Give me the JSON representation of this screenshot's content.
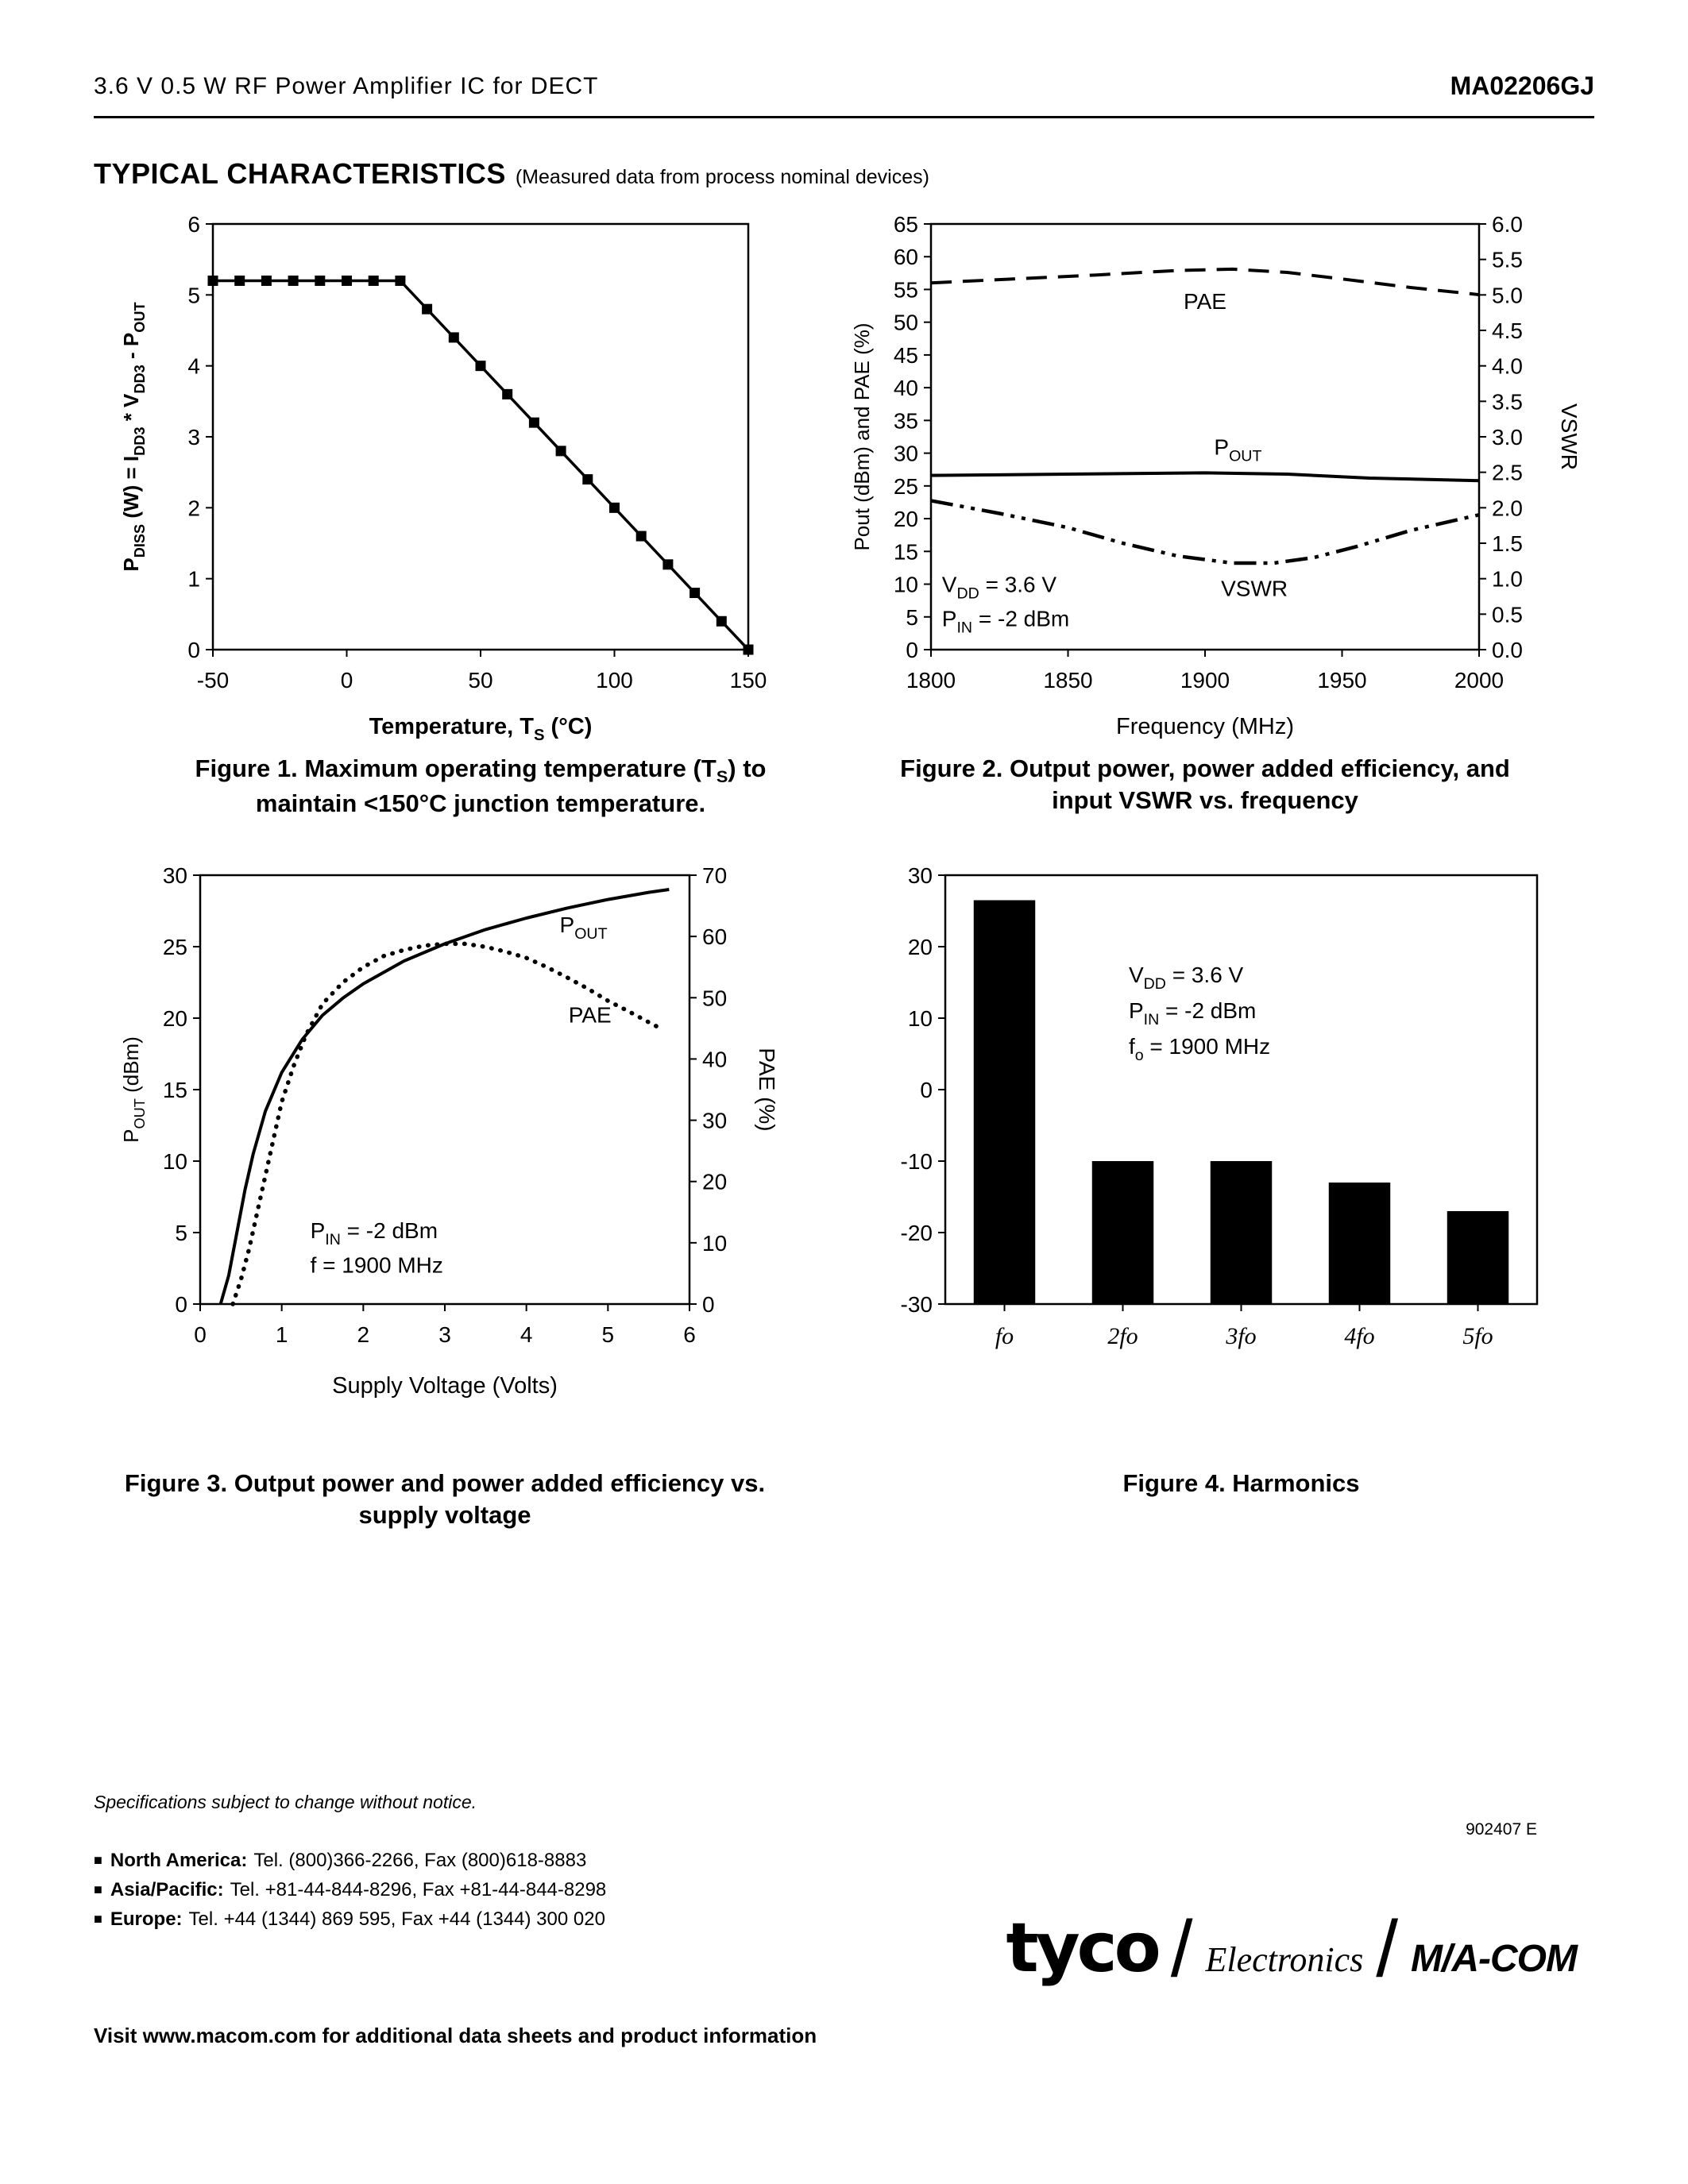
{
  "header": {
    "left": "3.6 V 0.5 W RF Power Amplifier IC for DECT",
    "right": "MA02206GJ"
  },
  "section": {
    "title": "TYPICAL CHARACTERISTICS",
    "subtitle": "(Measured data from process nominal devices)"
  },
  "figures": {
    "fig1_caption": "Figure 1.  Maximum operating temperature (T~S~) to\nmaintain <150°C junction temperature.",
    "fig2_caption": "Figure 2. Output power, power added efficiency, and\ninput VSWR vs. frequency",
    "fig3_caption": "Figure 3.  Output power and power added efficiency vs.\nsupply voltage",
    "fig4_caption": "Figure 4.  Harmonics"
  },
  "footer": {
    "bullet": "■",
    "spec_note": "Specifications subject to change without notice.",
    "doc_number": "902407  E",
    "contacts": [
      {
        "region": "North America:",
        "info": "Tel. (800)366-2266,  Fax (800)618-8883"
      },
      {
        "region": "Asia/Pacific:",
        "info": "Tel. +81-44-844-8296,  Fax +81-44-844-8298"
      },
      {
        "region": "Europe:",
        "info": "Tel. +44 (1344) 869 595,  Fax +44 (1344) 300 020"
      }
    ],
    "visit": "Visit www.macom.com for additional data sheets and product information",
    "logo_tyco": "tyco",
    "logo_slash": "/",
    "logo_electronics": "Electronics",
    "logo_macom": "M/A-COM"
  },
  "chart_data": [
    {
      "id": "fig1",
      "type": "line",
      "title": "Figure 1. Maximum operating temperature (Ts) to maintain <150°C junction temperature.",
      "xlabel": "Temperature, T~S~ (°C)",
      "ylabel": "P~DISS~ (W) = I~DD3~ * V~DD3~ - P~OUT~",
      "xlim": [
        -50,
        150
      ],
      "xticks": [
        -50,
        0,
        50,
        100,
        150
      ],
      "ylim": [
        0,
        6
      ],
      "yticks": [
        0,
        1,
        2,
        3,
        4,
        5,
        6
      ],
      "grid": false,
      "legend": "none",
      "series": [
        {
          "name": "PDISS",
          "axis": "left",
          "style": "solid-square",
          "points": [
            [
              -50,
              5.2
            ],
            [
              -40,
              5.2
            ],
            [
              -30,
              5.2
            ],
            [
              -20,
              5.2
            ],
            [
              -10,
              5.2
            ],
            [
              0,
              5.2
            ],
            [
              10,
              5.2
            ],
            [
              20,
              5.2
            ],
            [
              30,
              4.8
            ],
            [
              40,
              4.4
            ],
            [
              50,
              4.0
            ],
            [
              60,
              3.6
            ],
            [
              70,
              3.2
            ],
            [
              80,
              2.8
            ],
            [
              90,
              2.4
            ],
            [
              100,
              2.0
            ],
            [
              110,
              1.6
            ],
            [
              120,
              1.2
            ],
            [
              130,
              0.8
            ],
            [
              140,
              0.4
            ],
            [
              150,
              0.0
            ]
          ]
        }
      ],
      "annotations": []
    },
    {
      "id": "fig2",
      "type": "line",
      "title": "Figure 2. Output power, power added efficiency, and input VSWR vs. frequency",
      "xlabel": "Frequency (MHz)",
      "ylabel_left": "Pout (dBm) and PAE (%)",
      "ylabel_right": "VSWR",
      "xlim": [
        1800,
        2000
      ],
      "xticks": [
        1800,
        1850,
        1900,
        1950,
        2000
      ],
      "ylim_left": [
        0,
        65
      ],
      "yticks_left": [
        0,
        5,
        10,
        15,
        20,
        25,
        30,
        35,
        40,
        45,
        50,
        55,
        60,
        65
      ],
      "ylim_right": [
        0,
        6
      ],
      "yticks_right": [
        "0.0",
        "0.5",
        "1.0",
        "1.5",
        "2.0",
        "2.5",
        "3.0",
        "3.5",
        "4.0",
        "4.5",
        "5.0",
        "5.5",
        "6.0"
      ],
      "grid": false,
      "legend": "inline-labels",
      "series": [
        {
          "name": "PAE",
          "axis": "left",
          "style": "dashed",
          "points": [
            [
              1800,
              56
            ],
            [
              1830,
              56.6
            ],
            [
              1860,
              57.2
            ],
            [
              1890,
              57.9
            ],
            [
              1910,
              58.1
            ],
            [
              1930,
              57.6
            ],
            [
              1950,
              56.6
            ],
            [
              1975,
              55.3
            ],
            [
              2000,
              54.2
            ]
          ]
        },
        {
          "name": "POUT",
          "axis": "left",
          "style": "solid",
          "points": [
            [
              1800,
              26.6
            ],
            [
              1850,
              26.8
            ],
            [
              1900,
              27.0
            ],
            [
              1930,
              26.8
            ],
            [
              1960,
              26.2
            ],
            [
              2000,
              25.8
            ]
          ]
        },
        {
          "name": "VSWR",
          "axis": "right",
          "style": "dashdot",
          "points": [
            [
              1800,
              2.1
            ],
            [
              1825,
              1.92
            ],
            [
              1850,
              1.72
            ],
            [
              1870,
              1.5
            ],
            [
              1890,
              1.32
            ],
            [
              1910,
              1.22
            ],
            [
              1925,
              1.22
            ],
            [
              1940,
              1.3
            ],
            [
              1955,
              1.45
            ],
            [
              1975,
              1.68
            ],
            [
              2000,
              1.9
            ]
          ]
        }
      ],
      "annotations": [
        {
          "text": "PAE",
          "x": 1900,
          "y": 52,
          "axis": "left"
        },
        {
          "text": "P~OUT~",
          "x": 1912,
          "y": 29.8,
          "axis": "left"
        },
        {
          "text": "VSWR",
          "x": 1918,
          "y": 8.2,
          "axis": "left"
        },
        {
          "text": "V~DD~ = 3.6 V",
          "x": 1804,
          "y": 8.8,
          "axis": "left",
          "anchor": "start"
        },
        {
          "text": "P~IN~ = -2 dBm",
          "x": 1804,
          "y": 3.6,
          "axis": "left",
          "anchor": "start"
        }
      ]
    },
    {
      "id": "fig3",
      "type": "line",
      "title": "Figure 3. Output power and power added efficiency vs. supply voltage",
      "xlabel": "Supply Voltage (Volts)",
      "ylabel_left": "P~OUT~ (dBm)",
      "ylabel_right": "PAE (%)",
      "xlim": [
        0,
        6
      ],
      "xticks": [
        0,
        1,
        2,
        3,
        4,
        5,
        6
      ],
      "ylim_left": [
        0,
        30
      ],
      "yticks_left": [
        0,
        5,
        10,
        15,
        20,
        25,
        30
      ],
      "ylim_right": [
        0,
        70
      ],
      "yticks_right": [
        0,
        10,
        20,
        30,
        40,
        50,
        60,
        70
      ],
      "grid": false,
      "legend": "inline-labels",
      "series": [
        {
          "name": "POUT",
          "axis": "left",
          "style": "solid",
          "points": [
            [
              0.25,
              0
            ],
            [
              0.35,
              2
            ],
            [
              0.45,
              5
            ],
            [
              0.55,
              8
            ],
            [
              0.65,
              10.5
            ],
            [
              0.8,
              13.5
            ],
            [
              1.0,
              16.2
            ],
            [
              1.25,
              18.5
            ],
            [
              1.5,
              20.2
            ],
            [
              1.75,
              21.4
            ],
            [
              2.0,
              22.4
            ],
            [
              2.5,
              24.0
            ],
            [
              3.0,
              25.2
            ],
            [
              3.5,
              26.2
            ],
            [
              4.0,
              27.0
            ],
            [
              4.5,
              27.7
            ],
            [
              5.0,
              28.3
            ],
            [
              5.5,
              28.8
            ],
            [
              5.75,
              29.0
            ]
          ]
        },
        {
          "name": "PAE",
          "axis": "right",
          "style": "dotted",
          "points": [
            [
              0.4,
              0
            ],
            [
              0.5,
              4
            ],
            [
              0.6,
              9
            ],
            [
              0.7,
              15
            ],
            [
              0.8,
              21
            ],
            [
              0.9,
              27
            ],
            [
              1.0,
              33
            ],
            [
              1.15,
              39
            ],
            [
              1.3,
              44
            ],
            [
              1.5,
              49
            ],
            [
              1.75,
              52.5
            ],
            [
              2.0,
              55
            ],
            [
              2.25,
              56.8
            ],
            [
              2.5,
              57.8
            ],
            [
              2.75,
              58.5
            ],
            [
              3.0,
              58.8
            ],
            [
              3.25,
              58.8
            ],
            [
              3.5,
              58.3
            ],
            [
              3.75,
              57.5
            ],
            [
              4.0,
              56.5
            ],
            [
              4.25,
              55
            ],
            [
              4.5,
              53.3
            ],
            [
              4.75,
              51.5
            ],
            [
              5.0,
              49.5
            ],
            [
              5.25,
              47.8
            ],
            [
              5.5,
              46
            ],
            [
              5.6,
              45.3
            ]
          ]
        }
      ],
      "annotations": [
        {
          "text": "P~OUT~",
          "x": 4.7,
          "y": 26.0,
          "axis": "left"
        },
        {
          "text": "PAE",
          "x": 4.78,
          "y": 19.7,
          "axis": "left"
        },
        {
          "text": "P~IN~ = -2 dBm",
          "x": 1.35,
          "y": 4.6,
          "axis": "left",
          "anchor": "start"
        },
        {
          "text": "f = 1900 MHz",
          "x": 1.35,
          "y": 2.2,
          "axis": "left",
          "anchor": "start"
        }
      ]
    },
    {
      "id": "fig4",
      "type": "bar",
      "title": "Figure 4. Harmonics",
      "xlabel": "",
      "ylabel": "",
      "categories": [
        "fo",
        "2fo",
        "3fo",
        "4fo",
        "5fo"
      ],
      "values": [
        26.5,
        -10,
        -10,
        -13,
        -17
      ],
      "baseline": -30,
      "ylim": [
        -30,
        30
      ],
      "yticks": [
        -30,
        -20,
        -10,
        0,
        10,
        20,
        30
      ],
      "grid": false,
      "legend": "none",
      "annotations": [
        {
          "text": "V~DD~ = 3.6 V",
          "x": 1.55,
          "y": 15,
          "axis": "left",
          "anchor": "start"
        },
        {
          "text": "P~IN~ = -2 dBm",
          "x": 1.55,
          "y": 10,
          "axis": "left",
          "anchor": "start"
        },
        {
          "text": "f~o~ = 1900 MHz",
          "x": 1.55,
          "y": 5,
          "axis": "left",
          "anchor": "start"
        }
      ]
    }
  ]
}
